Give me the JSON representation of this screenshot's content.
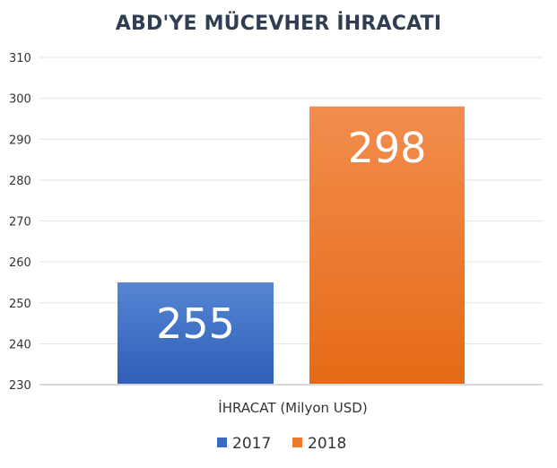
{
  "chart_data": {
    "type": "bar",
    "title": "ABD'YE MÜCEVHER İHRACATI",
    "categories": [
      "İHRACAT (Milyon USD)"
    ],
    "series": [
      {
        "name": "2017",
        "values": [
          255
        ],
        "color": "#3a6bc2"
      },
      {
        "name": "2018",
        "values": [
          298
        ],
        "color": "#ee7a2c"
      }
    ],
    "ylim": [
      230,
      310
    ],
    "yticks": [
      230,
      240,
      250,
      260,
      270,
      280,
      290,
      300,
      310
    ],
    "data_labels": [
      "255",
      "298"
    ],
    "grid": true,
    "legend": "bottom"
  }
}
